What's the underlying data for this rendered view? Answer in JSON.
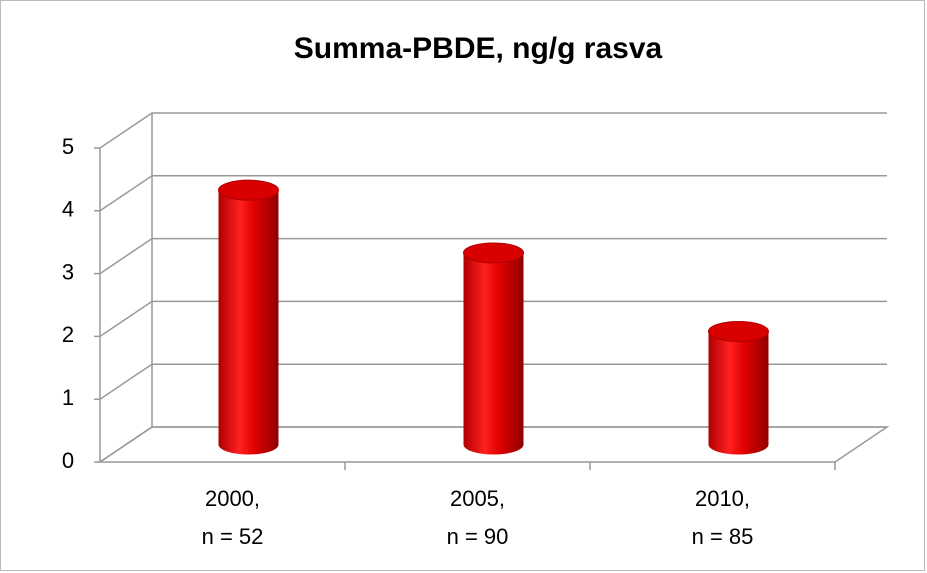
{
  "chart_data": {
    "type": "bar3d",
    "title": "Summa-PBDE, ng/g rasva",
    "categories": [
      [
        "2000,",
        "n = 52"
      ],
      [
        "2005,",
        "n = 90"
      ],
      [
        "2010,",
        "n = 85"
      ]
    ],
    "values": [
      4.05,
      3.05,
      1.8
    ],
    "color": "#e00000",
    "ylim": [
      0,
      5
    ],
    "yticks": [
      0,
      1,
      2,
      3,
      4,
      5
    ],
    "grid": true
  }
}
